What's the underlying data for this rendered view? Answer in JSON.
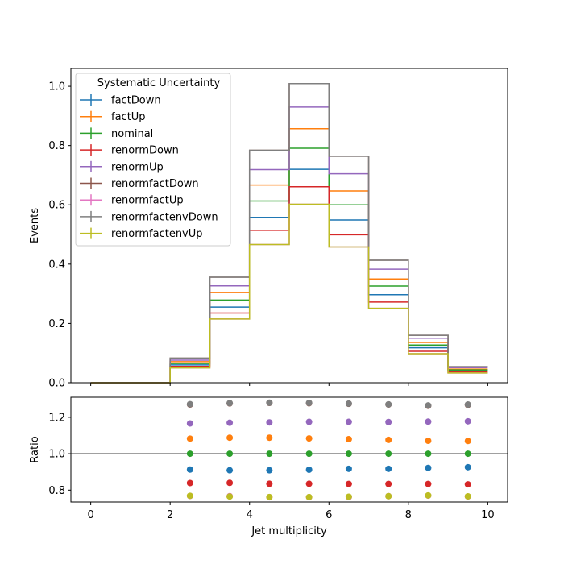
{
  "chart_data": [
    {
      "type": "step",
      "panel": "main",
      "xlabel": "",
      "ylabel": "Events",
      "xlim": [
        -0.5,
        10.5
      ],
      "ylim": [
        0,
        1.06
      ],
      "xticks": [
        0,
        2,
        4,
        6,
        8,
        10
      ],
      "yticks": [
        "0.0",
        "0.2",
        "0.4",
        "0.6",
        "0.8",
        "1.0"
      ],
      "bin_edges": [
        0,
        1,
        2,
        3,
        4,
        5,
        6,
        7,
        8,
        9,
        10
      ],
      "legend": {
        "title": "Systematic Uncertainty",
        "position": "upper-left"
      },
      "series": [
        {
          "name": "factDown",
          "color": "#1f77b4",
          "values": [
            0,
            0,
            0.06,
            0.255,
            0.558,
            0.72,
            0.549,
            0.297,
            0.118,
            0.04
          ]
        },
        {
          "name": "factUp",
          "color": "#ff7f0e",
          "values": [
            0,
            0,
            0.071,
            0.304,
            0.667,
            0.857,
            0.647,
            0.35,
            0.136,
            0.046
          ]
        },
        {
          "name": "nominal",
          "color": "#2ca02c",
          "values": [
            0,
            0,
            0.065,
            0.279,
            0.613,
            0.791,
            0.6,
            0.326,
            0.127,
            0.043
          ]
        },
        {
          "name": "renormDown",
          "color": "#d62728",
          "values": [
            0,
            0,
            0.055,
            0.235,
            0.514,
            0.661,
            0.499,
            0.272,
            0.106,
            0.036
          ]
        },
        {
          "name": "renormUp",
          "color": "#9467bd",
          "values": [
            0,
            0,
            0.076,
            0.327,
            0.719,
            0.93,
            0.705,
            0.383,
            0.15,
            0.051
          ]
        },
        {
          "name": "renormfactDown",
          "color": "#8c564b",
          "values": [
            0,
            0,
            0.083,
            0.356,
            0.784,
            1.009,
            0.764,
            0.413,
            0.16,
            0.054
          ]
        },
        {
          "name": "renormfactUp",
          "color": "#e377c2",
          "values": [
            0,
            0,
            0.05,
            0.215,
            0.466,
            0.602,
            0.458,
            0.251,
            0.098,
            0.033
          ]
        },
        {
          "name": "renormfactenvDown",
          "color": "#7f7f7f",
          "values": [
            0,
            0,
            0.083,
            0.356,
            0.784,
            1.009,
            0.764,
            0.413,
            0.16,
            0.054
          ]
        },
        {
          "name": "renormfactenvUp",
          "color": "#bcbd22",
          "values": [
            0,
            0,
            0.05,
            0.215,
            0.466,
            0.602,
            0.458,
            0.251,
            0.098,
            0.033
          ]
        }
      ]
    },
    {
      "type": "scatter",
      "panel": "ratio",
      "xlabel": "Jet multiplicity",
      "ylabel": "Ratio",
      "xlim": [
        -0.5,
        10.5
      ],
      "ylim": [
        0.735,
        1.31
      ],
      "xticks": [
        0,
        2,
        4,
        6,
        8,
        10
      ],
      "yticks": [
        "0.8",
        "1.0",
        "1.2"
      ],
      "reference_line": 1.0,
      "x": [
        2.5,
        3.5,
        4.5,
        5.5,
        6.5,
        7.5,
        8.5,
        9.5
      ],
      "series": [
        {
          "name": "factDown",
          "color": "#1f77b4",
          "values": [
            0.913,
            0.909,
            0.909,
            0.912,
            0.917,
            0.917,
            0.922,
            0.926
          ]
        },
        {
          "name": "factUp",
          "color": "#ff7f0e",
          "values": [
            1.083,
            1.088,
            1.088,
            1.084,
            1.08,
            1.076,
            1.071,
            1.07
          ]
        },
        {
          "name": "nominal",
          "color": "#2ca02c",
          "values": [
            1.0,
            1.0,
            1.0,
            1.0,
            1.0,
            1.0,
            1.0,
            1.0
          ]
        },
        {
          "name": "renormDown",
          "color": "#d62728",
          "values": [
            0.839,
            0.84,
            0.835,
            0.835,
            0.834,
            0.834,
            0.834,
            0.832
          ]
        },
        {
          "name": "renormUp",
          "color": "#9467bd",
          "values": [
            1.166,
            1.17,
            1.172,
            1.175,
            1.175,
            1.174,
            1.176,
            1.178
          ]
        },
        {
          "name": "renormfactDown",
          "color": "#8c564b",
          "values": [
            1.27,
            1.276,
            1.279,
            1.277,
            1.274,
            1.27,
            1.263,
            1.268
          ]
        },
        {
          "name": "renormfactUp",
          "color": "#e377c2",
          "values": [
            0.768,
            0.767,
            0.761,
            0.761,
            0.762,
            0.767,
            0.77,
            0.765
          ]
        },
        {
          "name": "renormfactenvDown",
          "color": "#7f7f7f",
          "values": [
            1.272,
            1.278,
            1.28,
            1.279,
            1.275,
            1.271,
            1.265,
            1.27
          ]
        },
        {
          "name": "renormfactenvUp",
          "color": "#bcbd22",
          "values": [
            0.769,
            0.765,
            0.762,
            0.762,
            0.764,
            0.767,
            0.771,
            0.766
          ]
        }
      ]
    }
  ]
}
